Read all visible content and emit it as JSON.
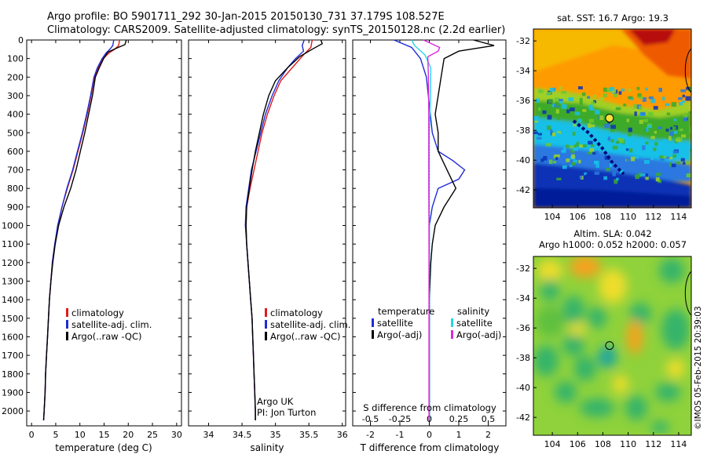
{
  "header": {
    "line1": "Argo profile: BO 5901711_292 30-Jan-2015 20150130_731 37.179S 108.527E",
    "line2": "Climatology: CARS2009. Satellite-adjusted climatology: synTS_20150128.nc (2.2d earlier)"
  },
  "colors": {
    "climatology": "#e01b1b",
    "satellite": "#1f2bd6",
    "argo": "#000000",
    "satellite_s": "#22d7e6",
    "argo_s": "#d92ad9"
  },
  "chart_data": [
    {
      "type": "line",
      "id": "temperature-profile",
      "xlabel": "temperature (deg C)",
      "xlim": [
        -1,
        31
      ],
      "xticks": [
        0,
        5,
        10,
        15,
        20,
        25,
        30
      ],
      "ylim": [
        0,
        2080
      ],
      "yticks": [
        0,
        100,
        200,
        300,
        400,
        500,
        600,
        700,
        800,
        900,
        1000,
        1100,
        1200,
        1300,
        1400,
        1500,
        1600,
        1700,
        1800,
        1900,
        2000
      ],
      "legend": {
        "position": "middle-center",
        "items": [
          "climatology",
          "satellite-adj. clim.",
          "Argo(..raw -QC)"
        ]
      },
      "series": [
        {
          "name": "climatology",
          "color": "#e01b1b",
          "points": [
            [
              18.2,
              0
            ],
            [
              18.0,
              30
            ],
            [
              17.2,
              50
            ],
            [
              16.0,
              70
            ],
            [
              14.8,
              100
            ],
            [
              13.8,
              150
            ],
            [
              13.0,
              200
            ],
            [
              12.3,
              300
            ],
            [
              11.5,
              400
            ],
            [
              10.6,
              500
            ],
            [
              9.6,
              600
            ],
            [
              8.6,
              700
            ],
            [
              7.4,
              800
            ],
            [
              6.3,
              900
            ],
            [
              5.5,
              1000
            ],
            [
              4.8,
              1100
            ],
            [
              4.3,
              1200
            ],
            [
              4.0,
              1300
            ],
            [
              3.7,
              1400
            ],
            [
              3.5,
              1500
            ],
            [
              3.3,
              1600
            ],
            [
              3.1,
              1700
            ],
            [
              2.9,
              1800
            ],
            [
              2.8,
              1900
            ],
            [
              2.6,
              2000
            ],
            [
              2.5,
              2050
            ]
          ]
        },
        {
          "name": "satellite-adj. clim.",
          "color": "#1f2bd6",
          "points": [
            [
              17.0,
              0
            ],
            [
              16.8,
              30
            ],
            [
              16.2,
              50
            ],
            [
              15.4,
              70
            ],
            [
              14.6,
              100
            ],
            [
              13.6,
              150
            ],
            [
              12.9,
              200
            ],
            [
              12.2,
              300
            ],
            [
              11.4,
              400
            ],
            [
              10.5,
              500
            ],
            [
              9.5,
              600
            ],
            [
              8.5,
              700
            ],
            [
              7.3,
              800
            ],
            [
              6.3,
              900
            ],
            [
              5.4,
              1000
            ],
            [
              4.8,
              1100
            ],
            [
              4.3,
              1200
            ],
            [
              4.0,
              1300
            ],
            [
              3.7,
              1400
            ],
            [
              3.5,
              1500
            ],
            [
              3.3,
              1600
            ],
            [
              3.1,
              1700
            ],
            [
              2.9,
              1800
            ],
            [
              2.8,
              1900
            ],
            [
              2.6,
              2000
            ],
            [
              2.5,
              2050
            ]
          ]
        },
        {
          "name": "Argo(..raw -QC)",
          "color": "#000000",
          "points": [
            [
              19.6,
              0
            ],
            [
              19.3,
              25
            ],
            [
              17.5,
              45
            ],
            [
              15.8,
              65
            ],
            [
              14.9,
              100
            ],
            [
              14.0,
              150
            ],
            [
              13.2,
              200
            ],
            [
              12.6,
              300
            ],
            [
              11.8,
              400
            ],
            [
              11.0,
              500
            ],
            [
              10.1,
              600
            ],
            [
              9.2,
              700
            ],
            [
              8.1,
              800
            ],
            [
              6.7,
              900
            ],
            [
              5.6,
              1000
            ],
            [
              4.9,
              1100
            ],
            [
              4.4,
              1200
            ],
            [
              4.0,
              1300
            ],
            [
              3.7,
              1400
            ],
            [
              3.5,
              1500
            ],
            [
              3.3,
              1600
            ],
            [
              3.1,
              1700
            ],
            [
              2.9,
              1800
            ],
            [
              2.8,
              1900
            ],
            [
              2.6,
              2000
            ],
            [
              2.5,
              2050
            ]
          ]
        }
      ]
    },
    {
      "type": "line",
      "id": "salinity-profile",
      "xlabel": "salinity",
      "xlim": [
        33.7,
        36.05
      ],
      "xticks": [
        34,
        34.5,
        35,
        35.5,
        36
      ],
      "xtick_labels": [
        "34",
        "34.5",
        "35",
        "35.5",
        "36"
      ],
      "ylim": [
        0,
        2080
      ],
      "legend": {
        "position": "middle-center",
        "items": [
          "climatology",
          "satellite-adj. clim.",
          "Argo(..raw -QC)"
        ]
      },
      "annotation": [
        "Argo UK",
        "PI: Jon Turton"
      ],
      "series": [
        {
          "name": "climatology",
          "color": "#e01b1b",
          "points": [
            [
              35.55,
              0
            ],
            [
              35.53,
              40
            ],
            [
              35.42,
              80
            ],
            [
              35.25,
              150
            ],
            [
              35.08,
              220
            ],
            [
              34.98,
              300
            ],
            [
              34.88,
              400
            ],
            [
              34.8,
              500
            ],
            [
              34.74,
              600
            ],
            [
              34.68,
              700
            ],
            [
              34.62,
              800
            ],
            [
              34.57,
              900
            ],
            [
              34.56,
              1000
            ],
            [
              34.57,
              1100
            ],
            [
              34.59,
              1200
            ],
            [
              34.61,
              1300
            ],
            [
              34.63,
              1400
            ],
            [
              34.65,
              1500
            ],
            [
              34.66,
              1600
            ],
            [
              34.67,
              1700
            ],
            [
              34.68,
              1800
            ],
            [
              34.69,
              1900
            ],
            [
              34.7,
              2000
            ],
            [
              34.7,
              2050
            ]
          ]
        },
        {
          "name": "satellite-adj. clim.",
          "color": "#1f2bd6",
          "points": [
            [
              35.43,
              0
            ],
            [
              35.4,
              30
            ],
            [
              35.42,
              60
            ],
            [
              35.3,
              100
            ],
            [
              35.18,
              150
            ],
            [
              35.05,
              220
            ],
            [
              34.95,
              300
            ],
            [
              34.85,
              400
            ],
            [
              34.78,
              500
            ],
            [
              34.71,
              600
            ],
            [
              34.64,
              700
            ],
            [
              34.6,
              800
            ],
            [
              34.56,
              900
            ],
            [
              34.55,
              1000
            ],
            [
              34.57,
              1100
            ],
            [
              34.59,
              1200
            ],
            [
              34.61,
              1300
            ],
            [
              34.63,
              1400
            ],
            [
              34.65,
              1500
            ],
            [
              34.66,
              1600
            ],
            [
              34.67,
              1700
            ],
            [
              34.68,
              1800
            ],
            [
              34.69,
              1900
            ],
            [
              34.7,
              2000
            ],
            [
              34.7,
              2050
            ]
          ]
        },
        {
          "name": "Argo(..raw -QC)",
          "color": "#000000",
          "points": [
            [
              35.68,
              0
            ],
            [
              35.7,
              20
            ],
            [
              35.55,
              50
            ],
            [
              35.36,
              90
            ],
            [
              35.18,
              150
            ],
            [
              35.0,
              220
            ],
            [
              34.9,
              300
            ],
            [
              34.82,
              400
            ],
            [
              34.76,
              500
            ],
            [
              34.7,
              600
            ],
            [
              34.65,
              700
            ],
            [
              34.61,
              800
            ],
            [
              34.57,
              900
            ],
            [
              34.56,
              1000
            ],
            [
              34.57,
              1100
            ],
            [
              34.59,
              1200
            ],
            [
              34.61,
              1300
            ],
            [
              34.63,
              1400
            ],
            [
              34.65,
              1500
            ],
            [
              34.66,
              1600
            ],
            [
              34.67,
              1700
            ],
            [
              34.68,
              1800
            ],
            [
              34.69,
              1900
            ],
            [
              34.7,
              2000
            ],
            [
              34.7,
              2050
            ]
          ]
        }
      ]
    },
    {
      "type": "line",
      "id": "difference-profile",
      "xlabel": "T difference from climatology",
      "xlabel_top": "S difference from climatology",
      "xlim": [
        -2.6,
        2.6
      ],
      "xticks": [
        -2,
        -1,
        0,
        1,
        2
      ],
      "xticks_secondary": [
        -0.5,
        -0.25,
        0,
        0.25,
        0.5
      ],
      "ylim": [
        0,
        2080
      ],
      "legend": {
        "position": "middle",
        "groups": [
          {
            "title": "temperature",
            "items": [
              "satellite",
              "Argo(-adj)"
            ]
          },
          {
            "title": "salinity",
            "items": [
              "satellite",
              "Argo(-adj)"
            ]
          }
        ]
      },
      "series": [
        {
          "name": "temperature satellite",
          "color": "#1f2bd6",
          "points": [
            [
              -1.2,
              0
            ],
            [
              -0.6,
              40
            ],
            [
              -0.3,
              100
            ],
            [
              -0.1,
              200
            ],
            [
              0.0,
              350
            ],
            [
              0.1,
              500
            ],
            [
              0.3,
              600
            ],
            [
              0.8,
              650
            ],
            [
              1.2,
              700
            ],
            [
              1.0,
              750
            ],
            [
              0.3,
              800
            ],
            [
              0.1,
              900
            ],
            [
              0.0,
              1000
            ],
            [
              0.0,
              1500
            ],
            [
              0.0,
              2050
            ]
          ]
        },
        {
          "name": "temperature Argo(-adj)",
          "color": "#000000",
          "points": [
            [
              1.5,
              0
            ],
            [
              2.2,
              30
            ],
            [
              1.0,
              60
            ],
            [
              0.5,
              100
            ],
            [
              0.4,
              200
            ],
            [
              0.3,
              300
            ],
            [
              0.2,
              400
            ],
            [
              0.3,
              500
            ],
            [
              0.3,
              600
            ],
            [
              0.6,
              700
            ],
            [
              0.9,
              800
            ],
            [
              0.5,
              900
            ],
            [
              0.2,
              1000
            ],
            [
              0.1,
              1100
            ],
            [
              0.05,
              1200
            ],
            [
              0.0,
              1400
            ],
            [
              0.0,
              2050
            ]
          ]
        },
        {
          "name": "salinity satellite",
          "color": "#22d7e6",
          "points": [
            [
              -0.6,
              0
            ],
            [
              -0.5,
              30
            ],
            [
              -0.15,
              80
            ],
            [
              0.05,
              150
            ],
            [
              0.04,
              300
            ],
            [
              0.0,
              500
            ],
            [
              0.0,
              2050
            ]
          ]
        },
        {
          "name": "salinity Argo(-adj)",
          "color": "#d92ad9",
          "points": [
            [
              -0.2,
              0
            ],
            [
              0.35,
              40
            ],
            [
              0.3,
              60
            ],
            [
              -0.05,
              90
            ],
            [
              -0.03,
              200
            ],
            [
              -0.02,
              400
            ],
            [
              -0.02,
              600
            ],
            [
              -0.02,
              800
            ],
            [
              -0.01,
              1000
            ],
            [
              -0.01,
              1200
            ],
            [
              -0.01,
              1400
            ],
            [
              -0.01,
              1600
            ],
            [
              -0.01,
              1800
            ],
            [
              -0.01,
              2050
            ]
          ]
        }
      ]
    },
    {
      "type": "heatmap",
      "id": "sst-map",
      "title": "sat. SST: 16.7 Argo: 19.3",
      "xlim": [
        102.5,
        115
      ],
      "ylim": [
        -43.2,
        -31.2
      ],
      "xticks": [
        104,
        106,
        108,
        110,
        112,
        114
      ],
      "yticks": [
        -32,
        -34,
        -36,
        -38,
        -40,
        -42
      ],
      "argo_position": [
        108.527,
        -37.179
      ]
    },
    {
      "type": "heatmap",
      "id": "sla-map",
      "title": "Altim. SLA: 0.042",
      "subtitle": "Argo h1000: 0.052 h2000: 0.057",
      "xlim": [
        102.5,
        115
      ],
      "ylim": [
        -43.2,
        -31.2
      ],
      "xticks": [
        104,
        106,
        108,
        110,
        112,
        114
      ],
      "yticks": [
        -32,
        -34,
        -36,
        -38,
        -40,
        -42
      ],
      "argo_position": [
        108.527,
        -37.179
      ]
    }
  ],
  "footer": {
    "credit": "©IMOS 05-Feb-2015 20:39:03"
  }
}
